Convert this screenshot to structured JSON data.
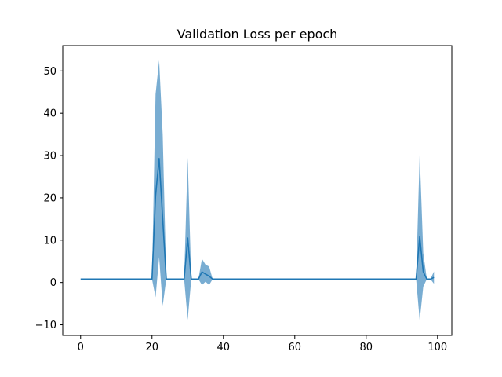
{
  "chart_data": {
    "type": "line",
    "title": "Validation Loss per epoch",
    "xlabel": "",
    "ylabel": "",
    "xlim": [
      -5,
      104
    ],
    "ylim": [
      -12.5,
      56
    ],
    "x_ticks": [
      0,
      20,
      40,
      60,
      80,
      100
    ],
    "y_ticks": [
      -10,
      0,
      10,
      20,
      30,
      40,
      50
    ],
    "grid": false,
    "line_color": "#1f77b4",
    "band_color": "#1f77b4",
    "band_opacity": 0.6,
    "series": [
      {
        "x": [
          0,
          20,
          21,
          22,
          23,
          24,
          29,
          30,
          31,
          33,
          34,
          35,
          36,
          37,
          94,
          95,
          96,
          97,
          98,
          99
        ],
        "mean": [
          0.8,
          0.8,
          20.5,
          29.3,
          15.0,
          0.8,
          0.8,
          10.5,
          0.8,
          0.8,
          2.5,
          2.0,
          1.5,
          0.8,
          0.8,
          10.8,
          2.5,
          0.8,
          0.8,
          1.2
        ],
        "upper": [
          0.8,
          0.8,
          44.5,
          52.5,
          35.0,
          0.8,
          0.8,
          29.5,
          0.8,
          0.8,
          5.6,
          4.2,
          3.8,
          0.8,
          0.8,
          30.5,
          7.0,
          0.8,
          0.8,
          2.6
        ],
        "lower": [
          0.8,
          0.8,
          -3.5,
          6.0,
          -5.5,
          0.8,
          0.8,
          -8.8,
          0.8,
          0.8,
          -0.6,
          0.2,
          -0.6,
          0.8,
          0.8,
          -9.0,
          -1.0,
          0.8,
          0.8,
          -0.3
        ]
      }
    ]
  }
}
